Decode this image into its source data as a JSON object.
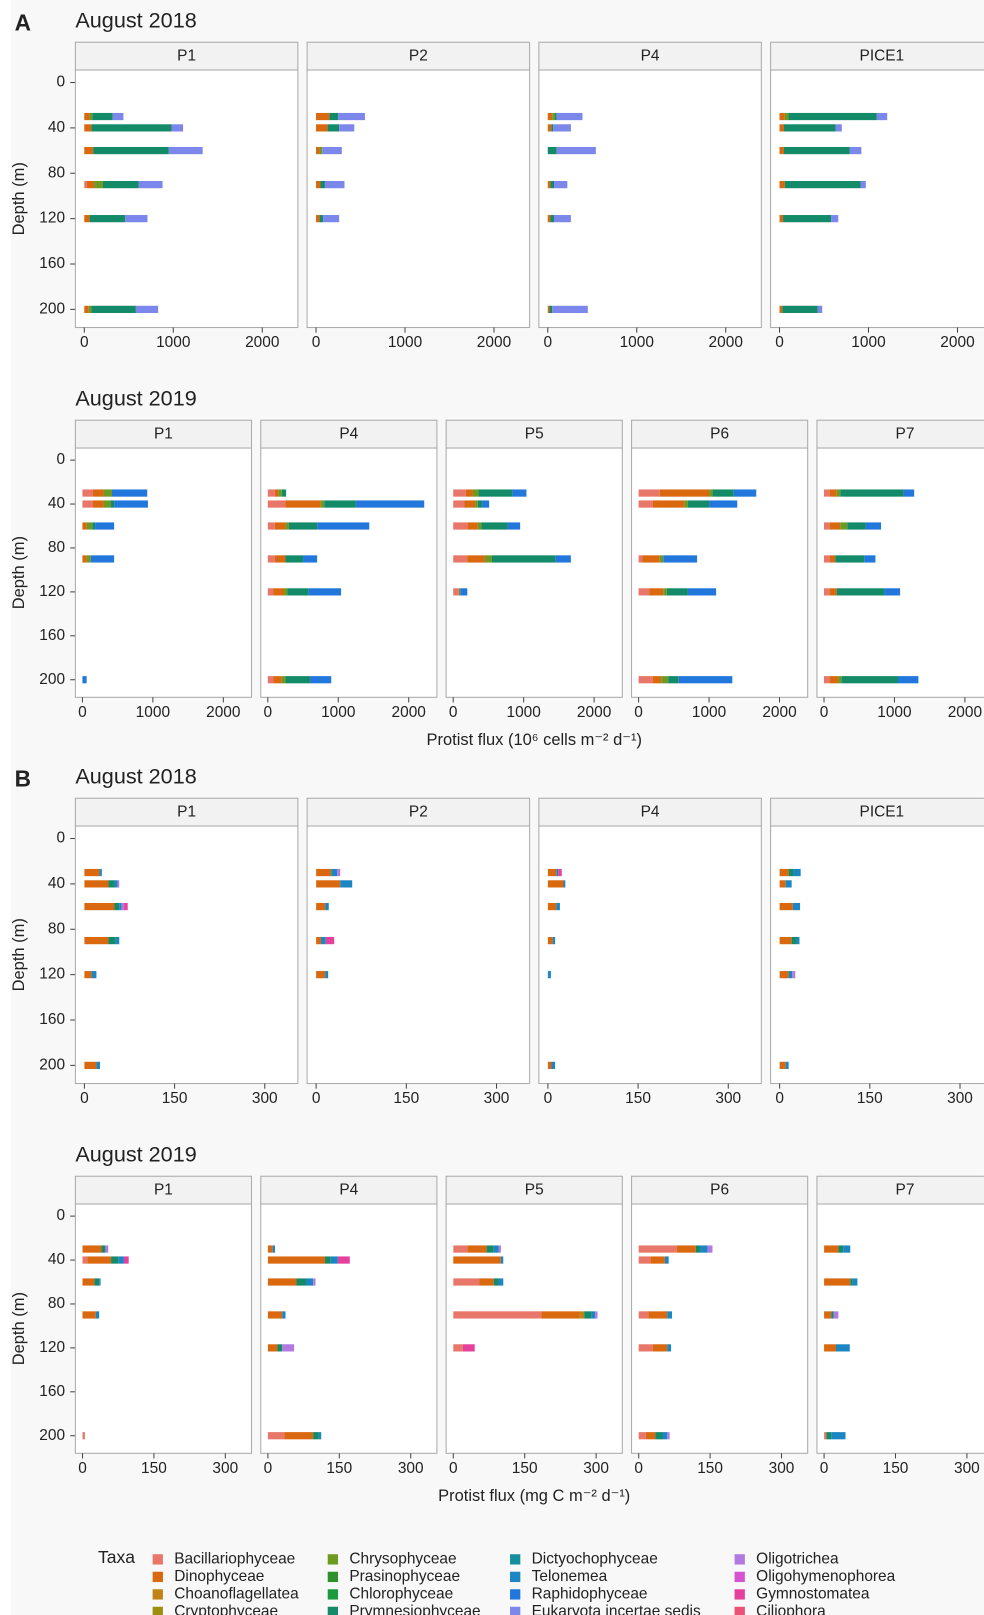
{
  "chart_data": [
    {
      "type": "bar",
      "orientation": "horizontal",
      "panel": "A",
      "title": "August 2018",
      "ylabel": "Depth (m)",
      "xlim": [
        -100,
        2400
      ],
      "xticks": [
        0,
        1000,
        2000
      ],
      "ylim": [
        216,
        -11
      ],
      "yticks": [
        0,
        40,
        80,
        120,
        160,
        200
      ],
      "y": [
        30,
        40,
        60,
        90,
        120,
        200
      ],
      "stack": [
        0,
        1,
        4,
        7,
        11
      ],
      "facets": [
        {
          "name": "P1",
          "values": [
            [
              0,
              60,
              30,
              230,
              120
            ],
            [
              0,
              80,
              0,
              900,
              130
            ],
            [
              0,
              100,
              0,
              850,
              380
            ],
            [
              30,
              80,
              100,
              400,
              270
            ],
            [
              0,
              60,
              0,
              400,
              250
            ],
            [
              0,
              50,
              30,
              500,
              250
            ]
          ]
        },
        {
          "name": "P2",
          "values": [
            [
              0,
              150,
              0,
              100,
              300
            ],
            [
              0,
              130,
              0,
              130,
              170
            ],
            [
              0,
              40,
              30,
              0,
              220
            ],
            [
              0,
              50,
              0,
              50,
              220
            ],
            [
              0,
              40,
              0,
              40,
              180
            ],
            null
          ]
        },
        {
          "name": "P4",
          "values": [
            [
              0,
              50,
              30,
              20,
              290
            ],
            [
              0,
              40,
              0,
              20,
              200
            ],
            [
              0,
              0,
              0,
              100,
              440
            ],
            [
              0,
              30,
              0,
              40,
              150
            ],
            [
              0,
              30,
              0,
              40,
              190
            ],
            [
              0,
              20,
              0,
              30,
              400
            ]
          ]
        },
        {
          "name": "PICE1",
          "values": [
            [
              0,
              60,
              40,
              990,
              120
            ],
            [
              0,
              50,
              0,
              580,
              70
            ],
            [
              0,
              50,
              0,
              740,
              130
            ],
            [
              0,
              60,
              0,
              850,
              60
            ],
            [
              0,
              40,
              0,
              540,
              80
            ],
            [
              0,
              30,
              0,
              400,
              50
            ]
          ]
        }
      ]
    },
    {
      "type": "bar",
      "orientation": "horizontal",
      "title": "August 2019",
      "ylabel": "Depth (m)",
      "xlabel": "Protist flux (10⁶ cells m⁻² d⁻¹)",
      "xlim": [
        -100,
        2400
      ],
      "xticks": [
        0,
        1000,
        2000
      ],
      "ylim": [
        216,
        -11
      ],
      "yticks": [
        0,
        40,
        80,
        120,
        160,
        200
      ],
      "y": [
        30,
        40,
        60,
        90,
        120,
        200
      ],
      "stack": [
        0,
        1,
        4,
        7,
        10
      ],
      "facets": [
        {
          "name": "P1",
          "values": [
            [
              150,
              150,
              120,
              0,
              500
            ],
            [
              150,
              150,
              100,
              50,
              480
            ],
            [
              0,
              60,
              80,
              40,
              270
            ],
            [
              0,
              60,
              60,
              0,
              330
            ],
            null,
            [
              0,
              0,
              0,
              0,
              60
            ]
          ]
        },
        {
          "name": "P4",
          "values": [
            [
              100,
              50,
              50,
              60,
              0
            ],
            [
              250,
              500,
              50,
              450,
              970
            ],
            [
              100,
              150,
              50,
              400,
              740
            ],
            [
              100,
              150,
              0,
              250,
              200
            ],
            [
              80,
              150,
              50,
              300,
              460
            ],
            [
              80,
              120,
              50,
              350,
              300
            ]
          ]
        },
        {
          "name": "P5",
          "values": [
            [
              180,
              100,
              80,
              480,
              200
            ],
            [
              160,
              150,
              40,
              60,
              100
            ],
            [
              200,
              150,
              50,
              370,
              180
            ],
            [
              200,
              250,
              100,
              900,
              220
            ],
            [
              80,
              0,
              20,
              0,
              100
            ],
            null
          ]
        },
        {
          "name": "P6",
          "values": [
            [
              300,
              700,
              50,
              300,
              320
            ],
            [
              200,
              450,
              50,
              300,
              400
            ],
            null,
            [
              50,
              250,
              50,
              0,
              480
            ],
            [
              150,
              200,
              50,
              300,
              400
            ],
            [
              200,
              120,
              100,
              150,
              760
            ]
          ]
        },
        {
          "name": "P7",
          "values": [
            [
              80,
              100,
              50,
              900,
              150
            ],
            null,
            [
              80,
              150,
              100,
              260,
              220
            ],
            [
              80,
              80,
              0,
              410,
              160
            ],
            [
              80,
              100,
              0,
              680,
              220
            ],
            [
              80,
              120,
              50,
              800,
              290
            ]
          ]
        }
      ]
    },
    {
      "type": "bar",
      "orientation": "horizontal",
      "panel": "B",
      "title": "August 2018",
      "ylabel": "Depth (m)",
      "xlim": [
        -15,
        355
      ],
      "xticks": [
        0,
        150,
        300
      ],
      "ylim": [
        216,
        -11
      ],
      "yticks": [
        0,
        40,
        80,
        120,
        160,
        200
      ],
      "y": [
        30,
        40,
        60,
        90,
        120,
        200
      ],
      "stack": [
        0,
        1,
        7,
        9,
        12,
        14
      ],
      "facets": [
        {
          "name": "P1",
          "values": [
            [
              0,
              25,
              0,
              4,
              0,
              0
            ],
            [
              0,
              40,
              10,
              5,
              3,
              0
            ],
            [
              0,
              50,
              8,
              4,
              4,
              6
            ],
            [
              0,
              40,
              12,
              6,
              0,
              0
            ],
            [
              0,
              12,
              0,
              8,
              0,
              0
            ],
            [
              0,
              20,
              0,
              6,
              0,
              0
            ]
          ]
        },
        {
          "name": "P2",
          "values": [
            [
              0,
              25,
              0,
              10,
              5,
              0
            ],
            [
              0,
              40,
              0,
              20,
              0,
              0
            ],
            [
              0,
              15,
              0,
              6,
              0,
              0
            ],
            [
              0,
              8,
              0,
              8,
              0,
              14
            ],
            [
              0,
              15,
              0,
              5,
              0,
              0
            ],
            null
          ]
        },
        {
          "name": "P4",
          "values": [
            [
              0,
              14,
              0,
              3,
              0,
              6
            ],
            [
              0,
              26,
              0,
              3,
              0,
              0
            ],
            [
              0,
              14,
              0,
              6,
              0,
              0
            ],
            [
              0,
              8,
              0,
              4,
              0,
              0
            ],
            [
              0,
              0,
              0,
              5,
              0,
              0
            ],
            [
              0,
              6,
              0,
              6,
              0,
              0
            ]
          ]
        },
        {
          "name": "PICE1",
          "values": [
            [
              0,
              15,
              8,
              12,
              0,
              0
            ],
            [
              0,
              10,
              0,
              10,
              0,
              0
            ],
            [
              0,
              22,
              0,
              12,
              0,
              0
            ],
            [
              0,
              20,
              8,
              5,
              0,
              0
            ],
            [
              0,
              15,
              0,
              6,
              5,
              0
            ],
            [
              0,
              10,
              0,
              5,
              0,
              0
            ]
          ]
        }
      ]
    },
    {
      "type": "bar",
      "orientation": "horizontal",
      "title": "August 2019",
      "ylabel": "Depth (m)",
      "xlabel": "Protist flux (mg C m⁻² d⁻¹)",
      "xlim": [
        -15,
        355
      ],
      "xticks": [
        0,
        150,
        300
      ],
      "ylim": [
        216,
        -11
      ],
      "yticks": [
        0,
        40,
        80,
        120,
        160,
        200
      ],
      "y": [
        30,
        40,
        60,
        90,
        120,
        200
      ],
      "stack": [
        0,
        1,
        2,
        7,
        9,
        12,
        14
      ],
      "facets": [
        {
          "name": "P1",
          "values": [
            [
              0,
              40,
              0,
              8,
              0,
              6,
              0
            ],
            [
              10,
              50,
              0,
              15,
              12,
              0,
              10
            ],
            [
              0,
              25,
              0,
              10,
              3,
              0,
              0
            ],
            [
              0,
              28,
              0,
              0,
              7,
              0,
              0
            ],
            null,
            [
              5,
              0,
              0,
              0,
              0,
              0,
              0
            ]
          ]
        },
        {
          "name": "P4",
          "values": [
            [
              0,
              10,
              0,
              0,
              5,
              0,
              0
            ],
            [
              0,
              120,
              0,
              12,
              15,
              0,
              25
            ],
            [
              0,
              60,
              0,
              20,
              15,
              5,
              0
            ],
            [
              0,
              30,
              0,
              0,
              7,
              0,
              0
            ],
            [
              0,
              20,
              0,
              10,
              0,
              25,
              0
            ],
            [
              35,
              60,
              0,
              12,
              5,
              0,
              0
            ]
          ]
        },
        {
          "name": "P5",
          "values": [
            [
              30,
              40,
              0,
              15,
              10,
              5,
              0
            ],
            [
              0,
              100,
              0,
              0,
              5,
              0,
              0
            ],
            [
              55,
              30,
              0,
              10,
              10,
              0,
              0
            ],
            [
              185,
              80,
              10,
              15,
              8,
              5,
              0
            ],
            [
              20,
              0,
              0,
              0,
              0,
              0,
              25
            ],
            null
          ]
        },
        {
          "name": "P6",
          "values": [
            [
              80,
              40,
              0,
              10,
              15,
              10,
              0
            ],
            [
              25,
              30,
              0,
              0,
              8,
              0,
              0
            ],
            null,
            [
              20,
              40,
              0,
              0,
              10,
              0,
              0
            ],
            [
              30,
              30,
              0,
              0,
              8,
              0,
              0
            ],
            [
              15,
              20,
              0,
              15,
              10,
              5,
              0
            ]
          ]
        },
        {
          "name": "P7",
          "values": [
            [
              0,
              30,
              0,
              10,
              15,
              0,
              0
            ],
            null,
            [
              0,
              55,
              0,
              5,
              10,
              0,
              0
            ],
            [
              0,
              15,
              0,
              5,
              0,
              10,
              0
            ],
            [
              0,
              25,
              0,
              0,
              29,
              0,
              0
            ],
            [
              5,
              0,
              0,
              10,
              30,
              0,
              0
            ]
          ]
        }
      ]
    }
  ],
  "legend": {
    "title": "Taxa",
    "items": [
      {
        "name": "Bacillariophyceae",
        "color": "#e8776a"
      },
      {
        "name": "Dinophyceae",
        "color": "#d9680f"
      },
      {
        "name": "Choanoflagellatea",
        "color": "#c08416"
      },
      {
        "name": "Cryptophyceae",
        "color": "#9c8f0c"
      },
      {
        "name": "Chrysophyceae",
        "color": "#6e9a22"
      },
      {
        "name": "Prasinophyceae",
        "color": "#2f8f2a"
      },
      {
        "name": "Chlorophyceae",
        "color": "#1c9a3e"
      },
      {
        "name": "Prymnesiophyceae",
        "color": "#138a68"
      },
      {
        "name": "Dictyochophyceae",
        "color": "#178e9c"
      },
      {
        "name": "Telonemea",
        "color": "#1b86c2"
      },
      {
        "name": "Raphidophyceae",
        "color": "#2277dc"
      },
      {
        "name": "Eukaryota incertae sedis",
        "color": "#7b87ea"
      },
      {
        "name": "Oligotrichea",
        "color": "#b27ae0"
      },
      {
        "name": "Oligohymenophorea",
        "color": "#d455cf"
      },
      {
        "name": "Gymnostomatea",
        "color": "#e6409e"
      },
      {
        "name": "Ciliophora",
        "color": "#ea5278"
      }
    ]
  }
}
